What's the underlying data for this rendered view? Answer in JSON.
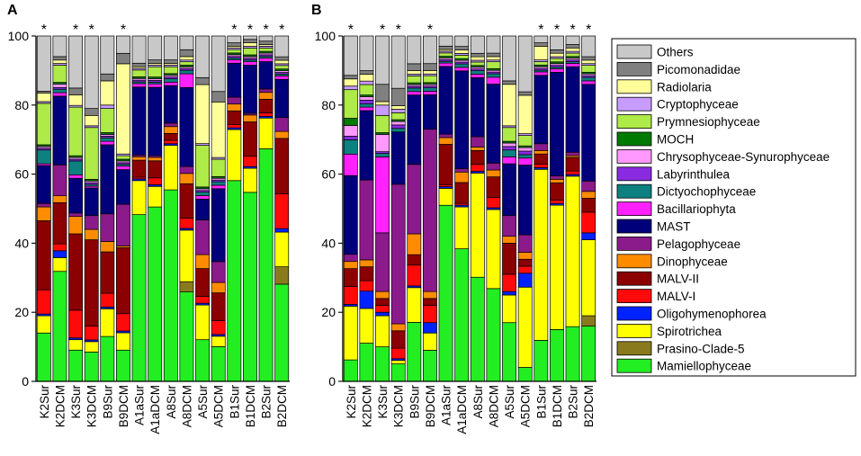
{
  "chart_data": {
    "type": "stacked-bar",
    "categories_order_bottom_to_top": [
      "Mamiellophyceae",
      "Prasino-Clade-5",
      "Spirotrichea",
      "Oligohymenophorea",
      "MALV-I",
      "MALV-II",
      "Dinophyceae",
      "Pelagophyceae",
      "MAST",
      "Bacillariophyta",
      "Dictyochophyceae",
      "Labyrinthulea",
      "Chrysophyceae-Synurophyceae",
      "MOCH",
      "Prymnesiophyceae",
      "Cryptophyceae",
      "Radiolaria",
      "Picomonadidae",
      "Others"
    ],
    "colors": {
      "Mamiellophyceae": "#22EE22",
      "Prasino-Clade-5": "#8A7A1E",
      "Spirotrichea": "#FFFF00",
      "Oligohymenophorea": "#0022FF",
      "MALV-I": "#FF0A0A",
      "MALV-II": "#8B0000",
      "Dinophyceae": "#FF8C00",
      "Pelagophyceae": "#8B1A8B",
      "MAST": "#00007A",
      "Bacillariophyta": "#FF22FF",
      "Dictyochophyceae": "#0E8080",
      "Labyrinthulea": "#8A2BE2",
      "Chrysophyceae-Synurophyceae": "#FF99FF",
      "MOCH": "#007A00",
      "Prymnesiophyceae": "#AEEA48",
      "Cryptophyceae": "#C89BFF",
      "Radiolaria": "#FFFF99",
      "Picomonadidae": "#808080",
      "Others": "#C8C8C8"
    },
    "ylim": [
      0,
      100
    ],
    "yticks": [
      0,
      20,
      40,
      60,
      80,
      100
    ],
    "legend_position": "right",
    "panels": [
      {
        "label": "A",
        "samples": [
          "K2Sur",
          "K2DCM",
          "K3Sur",
          "K3DCM",
          "B9Sur",
          "B9DCM",
          "A1aSur",
          "A1aDCM",
          "A8Sur",
          "A8DCM",
          "A5Sur",
          "A5DCM",
          "B1Sur",
          "B1DCM",
          "B2Sur",
          "B2DCM"
        ],
        "stars": [
          true,
          false,
          true,
          true,
          false,
          true,
          false,
          false,
          false,
          false,
          false,
          false,
          true,
          true,
          true,
          true
        ],
        "values": [
          [
            14,
            0,
            5,
            0.5,
            7,
            20,
            4,
            1,
            11,
            0.5,
            4,
            0.5,
            0.5,
            0.5,
            12,
            0.5,
            2.5,
            0.5,
            16
          ],
          [
            32,
            0,
            4,
            2,
            2,
            12,
            2,
            9,
            20,
            1,
            1,
            0.5,
            1,
            0.5,
            5,
            0.5,
            1,
            1,
            6
          ],
          [
            9,
            0,
            3,
            0.5,
            8,
            22,
            5,
            1,
            10,
            1,
            4,
            0.5,
            0.5,
            0.5,
            14,
            0.5,
            3,
            2,
            15
          ],
          [
            8.5,
            0,
            3,
            0.5,
            4,
            25,
            3,
            4,
            8,
            0.5,
            0.5,
            0.5,
            0.5,
            0.5,
            15,
            0.5,
            3,
            2,
            21
          ],
          [
            13,
            0,
            8,
            0.5,
            4,
            12,
            3,
            8,
            20,
            1,
            1,
            0.5,
            0.5,
            0.5,
            7,
            1,
            7,
            2,
            11
          ],
          [
            9,
            0,
            5,
            0.5,
            5,
            19,
            0.5,
            12,
            10,
            1,
            0.5,
            0.5,
            0.5,
            0.5,
            1,
            0.5,
            26,
            3,
            5
          ],
          [
            49,
            0,
            10,
            0.5,
            0.5,
            5,
            1,
            0.5,
            20,
            1,
            0.5,
            0.5,
            0.5,
            0.5,
            2,
            0.5,
            0.5,
            1,
            8
          ],
          [
            51,
            0,
            6,
            0.5,
            2,
            5,
            1,
            0.5,
            20,
            1,
            0.5,
            0.5,
            0.5,
            0.5,
            3,
            0.5,
            0.5,
            1,
            7
          ],
          [
            56,
            0,
            13,
            0.5,
            1,
            2,
            2,
            1,
            11,
            1,
            1,
            0.5,
            0.5,
            0.5,
            2,
            0.5,
            0.5,
            1,
            7
          ],
          [
            26,
            3,
            15,
            0.5,
            3,
            10,
            3,
            2,
            23,
            4,
            1,
            0.5,
            0.5,
            0.5,
            1,
            0.5,
            1,
            2,
            4
          ],
          [
            12,
            0,
            10,
            0.5,
            2,
            8,
            4,
            10,
            6,
            1,
            1,
            0.5,
            0.5,
            0.5,
            12,
            0.5,
            17,
            2,
            12
          ],
          [
            10,
            0,
            3,
            0.5,
            4,
            8,
            3,
            6,
            21,
            1,
            1,
            0.5,
            0.5,
            0.5,
            5,
            0.5,
            16,
            3,
            16
          ],
          [
            59,
            0,
            15,
            0.5,
            1,
            4,
            2,
            2,
            10,
            1,
            0.5,
            0.5,
            0.5,
            0.5,
            1,
            0.5,
            0.5,
            1,
            2
          ],
          [
            55,
            0,
            7,
            0.5,
            3,
            10,
            2,
            0.5,
            14,
            1,
            0.5,
            0.5,
            0.5,
            0.5,
            2,
            0.5,
            1,
            1,
            1
          ],
          [
            68,
            0,
            9,
            0.5,
            1,
            4,
            2,
            1,
            8,
            1,
            0.5,
            0.5,
            0.5,
            0.5,
            1,
            0.5,
            0.5,
            1,
            1.5
          ],
          [
            28,
            5,
            10,
            1,
            10,
            16,
            2,
            4,
            11,
            1,
            0.5,
            0.5,
            0.5,
            0.5,
            1,
            0.5,
            1,
            1,
            6
          ]
        ]
      },
      {
        "label": "B",
        "samples": [
          "K2Sur",
          "K2DCM",
          "K3Sur",
          "K3DCM",
          "B9Sur",
          "B9DCM",
          "A1aSur",
          "A1aDCM",
          "A8Sur",
          "A8DCM",
          "A5Sur",
          "A5DCM",
          "B1Sur",
          "B1DCM",
          "B2Sur",
          "B2DCM"
        ],
        "stars": [
          true,
          false,
          true,
          true,
          false,
          true,
          false,
          false,
          false,
          false,
          false,
          false,
          true,
          true,
          true,
          true
        ],
        "values": [
          [
            6,
            0,
            15,
            0.5,
            5,
            5,
            2,
            2,
            22,
            6,
            4,
            1,
            3,
            2,
            8,
            1,
            2,
            1,
            11
          ],
          [
            11,
            0,
            10,
            5,
            3,
            4,
            2,
            23,
            20,
            1,
            1,
            1,
            1,
            0.5,
            3,
            1,
            2,
            1,
            10
          ],
          [
            10,
            0,
            9,
            1,
            2,
            2,
            2,
            17,
            0,
            22,
            1,
            0.5,
            5,
            0.5,
            5,
            3,
            1,
            5,
            14
          ],
          [
            5,
            0,
            1,
            0.5,
            3,
            5,
            2,
            40,
            15,
            0,
            1,
            1,
            1,
            0.5,
            2,
            1,
            1,
            5,
            15
          ],
          [
            17,
            0,
            10,
            0.5,
            6,
            3,
            6,
            20,
            20,
            1,
            1,
            0.5,
            0.5,
            0.5,
            2,
            0.5,
            1,
            2,
            8
          ],
          [
            9,
            0,
            5,
            3,
            5,
            2,
            2,
            47,
            10,
            1,
            1,
            0.5,
            0.5,
            0.5,
            2,
            0.5,
            1,
            2,
            8
          ],
          [
            52,
            0,
            5,
            0.5,
            0.5,
            12,
            2,
            1,
            20,
            1,
            0.5,
            0.5,
            0.5,
            0.5,
            1,
            0.5,
            0.5,
            1,
            3
          ],
          [
            38,
            0,
            12,
            0.5,
            0.5,
            6,
            3,
            1,
            28,
            1,
            1,
            0.5,
            0.5,
            0.5,
            1,
            0.5,
            1,
            1,
            3
          ],
          [
            30,
            0,
            30,
            0.5,
            2,
            4,
            1,
            3,
            17,
            1,
            1,
            0.5,
            0.5,
            0.5,
            1,
            0.5,
            1,
            1,
            5
          ],
          [
            27,
            0,
            23,
            0.5,
            3,
            6,
            2,
            2,
            23,
            2,
            1,
            0.5,
            0.5,
            0.5,
            2,
            0.5,
            1,
            1,
            5
          ],
          [
            17,
            0,
            8,
            1,
            5,
            9,
            2,
            6,
            15,
            2,
            2,
            1,
            1,
            0.5,
            4,
            0.5,
            12,
            1,
            13
          ],
          [
            4,
            0,
            23,
            4,
            2,
            2,
            2,
            5,
            20,
            2,
            1,
            1,
            1,
            0.5,
            3,
            0.5,
            11,
            1,
            16
          ],
          [
            12,
            0,
            50,
            0.5,
            1,
            3,
            1,
            2,
            20,
            1,
            0.5,
            0.5,
            0.5,
            0.5,
            1,
            0.5,
            4,
            1,
            2
          ],
          [
            15,
            0,
            36,
            0.5,
            1,
            5,
            1,
            1,
            30,
            1,
            0.5,
            0.5,
            0.5,
            0.5,
            1,
            0.5,
            1,
            1,
            4
          ],
          [
            16,
            0,
            44,
            0.5,
            1,
            4,
            0.5,
            1,
            25,
            1,
            0.5,
            0.5,
            0.5,
            0.5,
            1,
            0.5,
            1,
            1,
            2.5
          ],
          [
            16,
            3,
            22,
            2,
            6,
            4,
            2,
            3,
            28,
            1,
            1,
            0.5,
            0.5,
            0.5,
            2,
            0.5,
            1,
            1,
            6
          ]
        ]
      }
    ],
    "legend_items": [
      "Others",
      "Picomonadidae",
      "Radiolaria",
      "Cryptophyceae",
      "Prymnesiophyceae",
      "MOCH",
      "Chrysophyceae-Synurophyceae",
      "Labyrinthulea",
      "Dictyochophyceae",
      "Bacillariophyta",
      "MAST",
      "Pelagophyceae",
      "Dinophyceae",
      "MALV-II",
      "MALV-I",
      "Oligohymenophorea",
      "Spirotrichea",
      "Prasino-Clade-5",
      "Mamiellophyceae"
    ]
  }
}
